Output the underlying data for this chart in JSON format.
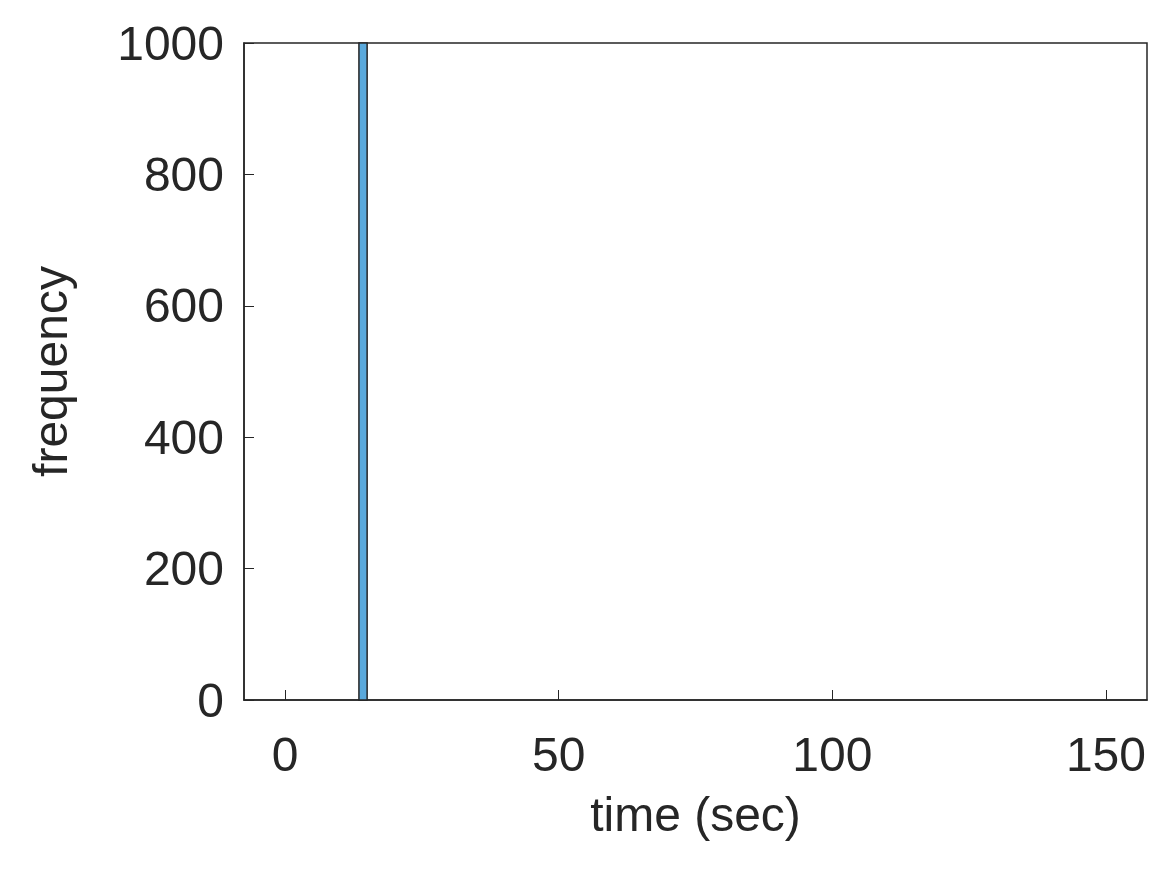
{
  "chart_data": {
    "type": "histogram",
    "xlabel": "time (sec)",
    "ylabel": "frequency",
    "bins": [
      13.5,
      15
    ],
    "values": [
      1000
    ],
    "color": "#5aa9dc",
    "xlim": [
      -7.5,
      157.5
    ],
    "xticks": [
      0,
      50,
      100,
      150
    ],
    "ylim": [
      0,
      1000
    ],
    "yticks": [
      0,
      200,
      400,
      600,
      800,
      1000
    ],
    "grid": false
  }
}
